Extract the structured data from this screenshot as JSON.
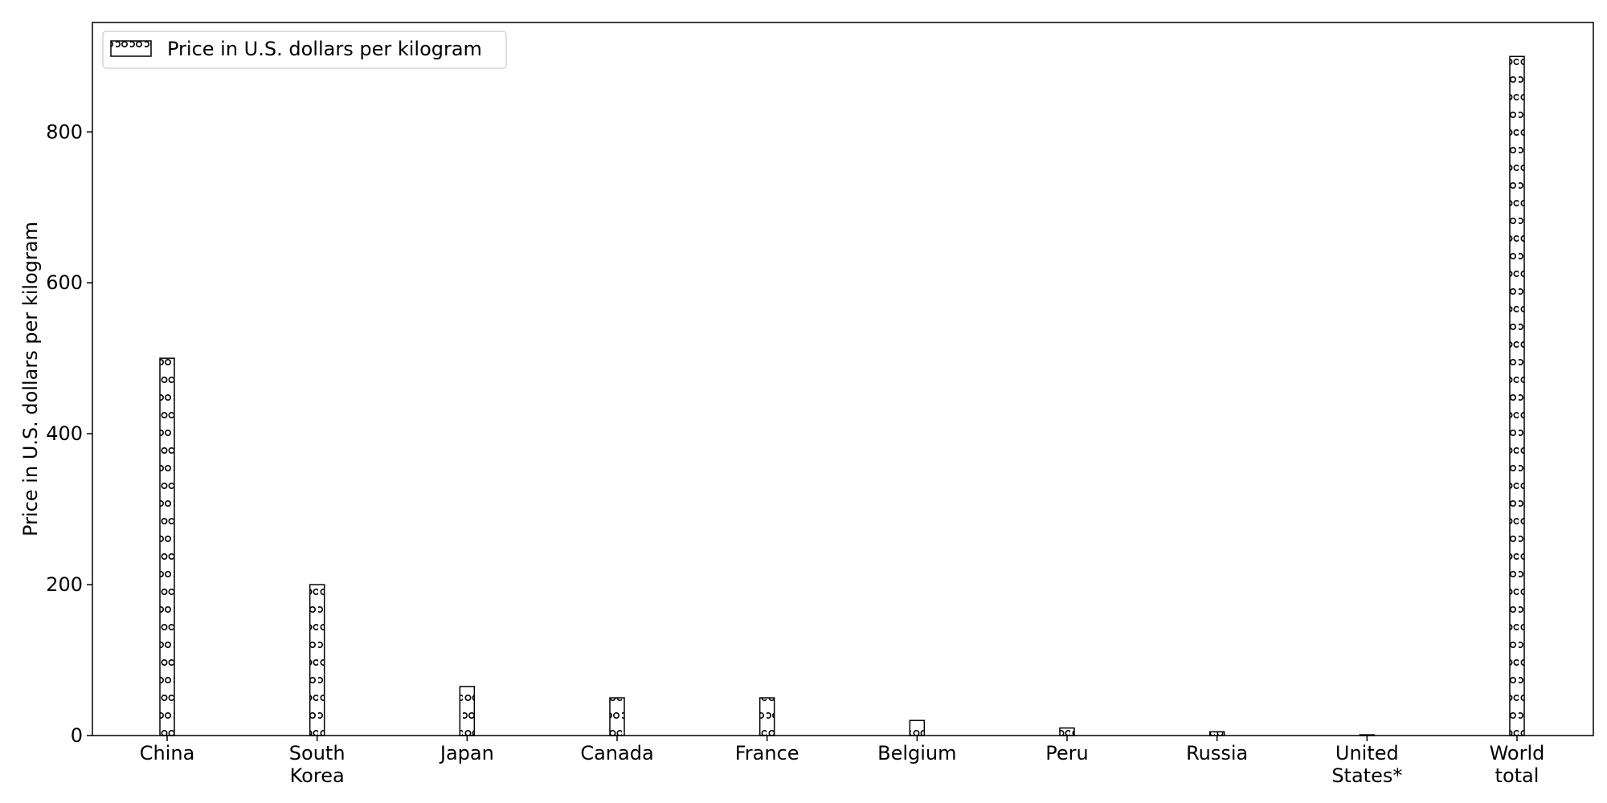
{
  "chart_data": {
    "type": "bar",
    "title": "",
    "xlabel": "",
    "ylabel": "Price in U.S. dollars per kilogram",
    "categories": [
      [
        "China"
      ],
      [
        "South",
        "Korea"
      ],
      [
        "Japan"
      ],
      [
        "Canada"
      ],
      [
        "France"
      ],
      [
        "Belgium"
      ],
      [
        "Peru"
      ],
      [
        "Russia"
      ],
      [
        "United",
        "States*"
      ],
      [
        "World",
        "total"
      ]
    ],
    "series": [
      {
        "name": "Price in U.S. dollars per kilogram",
        "values": [
          500,
          200,
          65,
          50,
          50,
          20,
          10,
          5,
          1,
          900
        ]
      }
    ],
    "ylim": [
      0,
      945
    ],
    "yticks": [
      0,
      200,
      400,
      600,
      800
    ],
    "grid": false,
    "legend_position": "top-left",
    "bar_fill": "#ffffff",
    "bar_stroke": "#000000",
    "bar_pattern": "small-circles"
  }
}
